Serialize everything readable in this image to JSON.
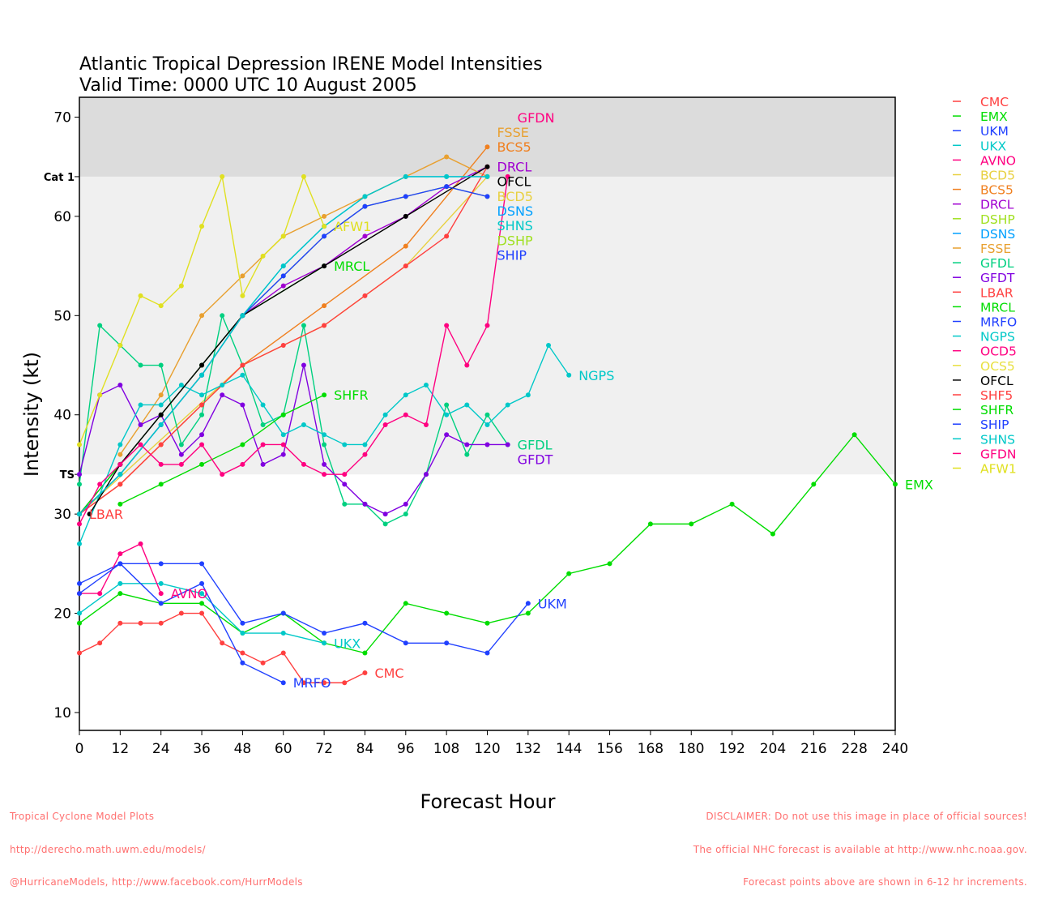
{
  "chart_data": {
    "type": "line",
    "title": "Atlantic Tropical Depression IRENE Model Intensities",
    "subtitle": "Valid Time: 0000 UTC 10 August 2005",
    "xlabel": "Forecast Hour",
    "ylabel": "Intensity (kt)",
    "xlim": [
      0,
      240
    ],
    "ylim": [
      8.2,
      72
    ],
    "xticks": [
      0,
      12,
      24,
      36,
      48,
      60,
      72,
      84,
      96,
      108,
      120,
      132,
      144,
      156,
      168,
      180,
      192,
      204,
      216,
      228,
      240
    ],
    "yticks": [
      10,
      20,
      30,
      40,
      50,
      60,
      70
    ],
    "bands": [
      {
        "label": "Cat 1",
        "from": 64,
        "to": 72,
        "color": "#dcdcdc"
      },
      {
        "label": "TS",
        "from": 34,
        "to": 64,
        "color": "#f0f0f0"
      }
    ],
    "legend_placement": "right",
    "series": [
      {
        "name": "CMC",
        "color": "#ff4040",
        "points": [
          [
            0,
            16
          ],
          [
            6,
            17
          ],
          [
            12,
            19
          ],
          [
            18,
            19
          ],
          [
            24,
            19
          ],
          [
            30,
            20
          ],
          [
            36,
            20
          ],
          [
            42,
            17
          ],
          [
            48,
            16
          ],
          [
            54,
            15
          ],
          [
            60,
            16
          ],
          [
            66,
            13
          ],
          [
            72,
            13
          ],
          [
            78,
            13
          ],
          [
            84,
            14
          ]
        ]
      },
      {
        "name": "EMX",
        "color": "#00dd00",
        "points": [
          [
            0,
            19
          ],
          [
            12,
            22
          ],
          [
            24,
            21
          ],
          [
            36,
            21
          ],
          [
            48,
            18
          ],
          [
            60,
            20
          ],
          [
            72,
            17
          ],
          [
            84,
            16
          ],
          [
            96,
            21
          ],
          [
            108,
            20
          ],
          [
            120,
            19
          ],
          [
            132,
            20
          ],
          [
            144,
            24
          ],
          [
            156,
            25
          ],
          [
            168,
            29
          ],
          [
            180,
            29
          ],
          [
            192,
            31
          ],
          [
            204,
            28
          ],
          [
            216,
            33
          ],
          [
            228,
            38
          ],
          [
            240,
            33
          ]
        ]
      },
      {
        "name": "UKM",
        "color": "#2040ff",
        "points": [
          [
            0,
            23
          ],
          [
            12,
            25
          ],
          [
            24,
            25
          ],
          [
            36,
            25
          ],
          [
            48,
            19
          ],
          [
            60,
            20
          ],
          [
            72,
            18
          ],
          [
            84,
            19
          ],
          [
            96,
            17
          ],
          [
            108,
            17
          ],
          [
            120,
            16
          ],
          [
            132,
            21
          ]
        ]
      },
      {
        "name": "UKX",
        "color": "#00c8c8",
        "points": [
          [
            0,
            20
          ],
          [
            12,
            23
          ],
          [
            24,
            23
          ],
          [
            36,
            22
          ],
          [
            48,
            18
          ],
          [
            60,
            18
          ],
          [
            72,
            17
          ]
        ]
      },
      {
        "name": "AVNO",
        "color": "#ff0080",
        "points": [
          [
            0,
            22
          ],
          [
            6,
            22
          ],
          [
            12,
            26
          ],
          [
            18,
            27
          ],
          [
            24,
            22
          ]
        ]
      },
      {
        "name": "BCD5",
        "color": "#e8d040",
        "points": [
          [
            0,
            30
          ],
          [
            48,
            45
          ],
          [
            72,
            49
          ],
          [
            96,
            55
          ],
          [
            120,
            64
          ]
        ]
      },
      {
        "name": "BCS5",
        "color": "#f08020",
        "points": [
          [
            0,
            30
          ],
          [
            12,
            33
          ],
          [
            24,
            37
          ],
          [
            36,
            41
          ],
          [
            48,
            45
          ],
          [
            72,
            51
          ],
          [
            96,
            57
          ],
          [
            120,
            67
          ]
        ]
      },
      {
        "name": "DRCL",
        "color": "#a000d0",
        "points": [
          [
            0,
            30
          ],
          [
            12,
            35
          ],
          [
            24,
            40
          ],
          [
            36,
            45
          ],
          [
            48,
            50
          ],
          [
            60,
            53
          ],
          [
            72,
            55
          ],
          [
            84,
            58
          ],
          [
            96,
            60
          ],
          [
            108,
            63
          ],
          [
            120,
            65
          ]
        ]
      },
      {
        "name": "DSHP",
        "color": "#a0e020",
        "points": [
          [
            0,
            30
          ],
          [
            12,
            34
          ],
          [
            24,
            39
          ],
          [
            36,
            44
          ],
          [
            48,
            50
          ],
          [
            60,
            54
          ],
          [
            72,
            58
          ],
          [
            84,
            61
          ],
          [
            96,
            62
          ],
          [
            108,
            63
          ],
          [
            120,
            62
          ]
        ]
      },
      {
        "name": "DSNS",
        "color": "#00a0ff",
        "points": [
          [
            0,
            30
          ],
          [
            12,
            34
          ],
          [
            24,
            39
          ],
          [
            36,
            44
          ],
          [
            48,
            50
          ],
          [
            60,
            55
          ],
          [
            72,
            59
          ],
          [
            84,
            62
          ],
          [
            96,
            64
          ],
          [
            108,
            64
          ],
          [
            120,
            64
          ]
        ]
      },
      {
        "name": "FSSE",
        "color": "#e8a030",
        "points": [
          [
            12,
            36
          ],
          [
            24,
            42
          ],
          [
            36,
            50
          ],
          [
            48,
            54
          ],
          [
            60,
            58
          ],
          [
            72,
            60
          ],
          [
            84,
            62
          ],
          [
            96,
            64
          ],
          [
            108,
            66
          ],
          [
            120,
            64
          ]
        ]
      },
      {
        "name": "GFDL",
        "color": "#00d080",
        "points": [
          [
            0,
            33
          ],
          [
            6,
            49
          ],
          [
            12,
            47
          ],
          [
            18,
            45
          ],
          [
            24,
            45
          ],
          [
            30,
            37
          ],
          [
            36,
            40
          ],
          [
            42,
            50
          ],
          [
            48,
            45
          ],
          [
            54,
            39
          ],
          [
            60,
            40
          ],
          [
            66,
            49
          ],
          [
            72,
            37
          ],
          [
            78,
            31
          ],
          [
            84,
            31
          ],
          [
            90,
            29
          ],
          [
            96,
            30
          ],
          [
            102,
            34
          ],
          [
            108,
            41
          ],
          [
            114,
            36
          ],
          [
            120,
            40
          ],
          [
            126,
            37
          ]
        ]
      },
      {
        "name": "GFDT",
        "color": "#8000e0",
        "points": [
          [
            0,
            34
          ],
          [
            6,
            42
          ],
          [
            12,
            43
          ],
          [
            18,
            39
          ],
          [
            24,
            40
          ],
          [
            30,
            36
          ],
          [
            36,
            38
          ],
          [
            42,
            42
          ],
          [
            48,
            41
          ],
          [
            54,
            35
          ],
          [
            60,
            36
          ],
          [
            66,
            45
          ],
          [
            72,
            35
          ],
          [
            78,
            33
          ],
          [
            84,
            31
          ],
          [
            90,
            30
          ],
          [
            96,
            31
          ],
          [
            102,
            34
          ],
          [
            108,
            38
          ],
          [
            114,
            37
          ],
          [
            120,
            37
          ],
          [
            126,
            37
          ]
        ]
      },
      {
        "name": "LBAR",
        "color": "#ff4040",
        "label_pos": "start",
        "points": [
          [
            0,
            30
          ],
          [
            12,
            33
          ],
          [
            24,
            37
          ],
          [
            36,
            41
          ],
          [
            48,
            45
          ],
          [
            60,
            47
          ],
          [
            72,
            49
          ],
          [
            84,
            52
          ],
          [
            96,
            55
          ],
          [
            108,
            58
          ],
          [
            120,
            65
          ]
        ]
      },
      {
        "name": "MRCL",
        "color": "#00dd00",
        "points": [
          [
            0,
            30
          ],
          [
            12,
            35
          ],
          [
            24,
            40
          ],
          [
            36,
            45
          ],
          [
            48,
            50
          ],
          [
            72,
            55
          ]
        ]
      },
      {
        "name": "MRFO",
        "color": "#2040ff",
        "points": [
          [
            0,
            22
          ],
          [
            12,
            25
          ],
          [
            24,
            21
          ],
          [
            36,
            23
          ],
          [
            48,
            15
          ],
          [
            60,
            13
          ]
        ]
      },
      {
        "name": "NGPS",
        "color": "#00c8c8",
        "points": [
          [
            0,
            27
          ],
          [
            12,
            37
          ],
          [
            18,
            41
          ],
          [
            24,
            41
          ],
          [
            30,
            43
          ],
          [
            36,
            42
          ],
          [
            42,
            43
          ],
          [
            48,
            44
          ],
          [
            54,
            41
          ],
          [
            60,
            38
          ],
          [
            66,
            39
          ],
          [
            72,
            38
          ],
          [
            78,
            37
          ],
          [
            84,
            37
          ],
          [
            90,
            40
          ],
          [
            96,
            42
          ],
          [
            102,
            43
          ],
          [
            108,
            40
          ],
          [
            114,
            41
          ],
          [
            120,
            39
          ],
          [
            126,
            41
          ],
          [
            132,
            42
          ],
          [
            138,
            47
          ],
          [
            144,
            44
          ]
        ]
      },
      {
        "name": "OCD5",
        "color": "#ff0080",
        "points": []
      },
      {
        "name": "OCS5",
        "color": "#e8e040",
        "points": []
      },
      {
        "name": "OFCL",
        "color": "#000000",
        "points": [
          [
            3,
            30
          ],
          [
            12,
            35
          ],
          [
            24,
            40
          ],
          [
            36,
            45
          ],
          [
            48,
            50
          ],
          [
            72,
            55
          ],
          [
            96,
            60
          ],
          [
            120,
            65
          ]
        ]
      },
      {
        "name": "SHF5",
        "color": "#ff4040",
        "points": []
      },
      {
        "name": "SHFR",
        "color": "#00dd00",
        "points": [
          [
            12,
            31
          ],
          [
            24,
            33
          ],
          [
            36,
            35
          ],
          [
            48,
            37
          ],
          [
            60,
            40
          ],
          [
            72,
            42
          ]
        ]
      },
      {
        "name": "SHIP",
        "color": "#2040ff",
        "points": [
          [
            0,
            30
          ],
          [
            12,
            34
          ],
          [
            24,
            39
          ],
          [
            36,
            44
          ],
          [
            48,
            50
          ],
          [
            60,
            54
          ],
          [
            72,
            58
          ],
          [
            84,
            61
          ],
          [
            96,
            62
          ],
          [
            108,
            63
          ],
          [
            120,
            62
          ]
        ]
      },
      {
        "name": "SHNS",
        "color": "#00c8c8",
        "points": [
          [
            0,
            30
          ],
          [
            12,
            34
          ],
          [
            24,
            39
          ],
          [
            36,
            44
          ],
          [
            48,
            50
          ],
          [
            60,
            55
          ],
          [
            72,
            59
          ],
          [
            84,
            62
          ],
          [
            96,
            64
          ],
          [
            108,
            64
          ],
          [
            120,
            64
          ]
        ]
      },
      {
        "name": "GFDN",
        "color": "#ff0080",
        "points": [
          [
            0,
            29
          ],
          [
            6,
            33
          ],
          [
            12,
            35
          ],
          [
            18,
            37
          ],
          [
            24,
            35
          ],
          [
            30,
            35
          ],
          [
            36,
            37
          ],
          [
            42,
            34
          ],
          [
            48,
            35
          ],
          [
            54,
            37
          ],
          [
            60,
            37
          ],
          [
            66,
            35
          ],
          [
            72,
            34
          ],
          [
            78,
            34
          ],
          [
            84,
            36
          ],
          [
            90,
            39
          ],
          [
            96,
            40
          ],
          [
            102,
            39
          ],
          [
            108,
            49
          ],
          [
            114,
            45
          ],
          [
            120,
            49
          ],
          [
            126,
            64
          ]
        ]
      },
      {
        "name": "AFW1",
        "color": "#e0e020",
        "points": [
          [
            0,
            37
          ],
          [
            6,
            42
          ],
          [
            12,
            47
          ],
          [
            18,
            52
          ],
          [
            24,
            51
          ],
          [
            30,
            53
          ],
          [
            36,
            59
          ],
          [
            42,
            64
          ],
          [
            48,
            52
          ],
          [
            54,
            56
          ],
          [
            60,
            58
          ],
          [
            66,
            64
          ],
          [
            72,
            59
          ]
        ]
      }
    ]
  },
  "footer": {
    "left": [
      "Tropical Cyclone Model Plots",
      "http://derecho.math.uwm.edu/models/",
      "@HurricaneModels, http://www.facebook.com/HurrModels"
    ],
    "right": [
      "DISCLAIMER: Do not use this image in place of official sources!",
      "The official NHC forecast is available at http://www.nhc.noaa.gov.",
      "Forecast points above are shown in 6-12 hr increments."
    ]
  }
}
